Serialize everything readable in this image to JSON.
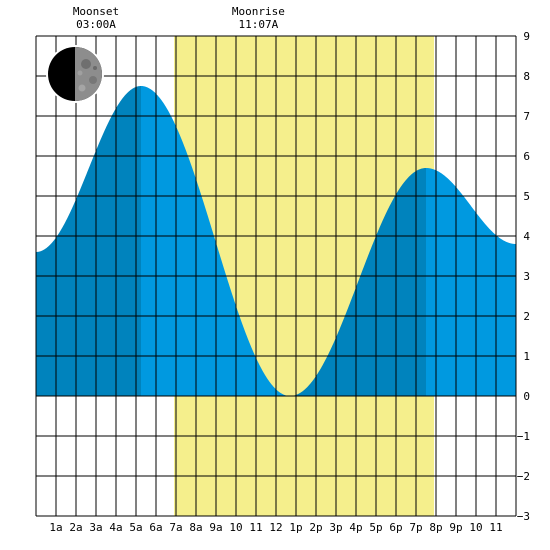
{
  "annotations": [
    {
      "id": "moonset",
      "label": "Moonset",
      "time": "03:00A",
      "hour": 3.0
    },
    {
      "id": "moonrise",
      "label": "Moonrise",
      "time": "11:07A",
      "hour": 11.117
    }
  ],
  "moon_phase": "first-quarter-moon",
  "chart_data": {
    "type": "area",
    "xlim": [
      0,
      24
    ],
    "ylim": [
      -3,
      9
    ],
    "x_ticks": [
      {
        "h": 1,
        "label": "1a"
      },
      {
        "h": 2,
        "label": "2a"
      },
      {
        "h": 3,
        "label": "3a"
      },
      {
        "h": 4,
        "label": "4a"
      },
      {
        "h": 5,
        "label": "5a"
      },
      {
        "h": 6,
        "label": "6a"
      },
      {
        "h": 7,
        "label": "7a"
      },
      {
        "h": 8,
        "label": "8a"
      },
      {
        "h": 9,
        "label": "9a"
      },
      {
        "h": 10,
        "label": "10"
      },
      {
        "h": 11,
        "label": "11"
      },
      {
        "h": 12,
        "label": "12"
      },
      {
        "h": 13,
        "label": "1p"
      },
      {
        "h": 14,
        "label": "2p"
      },
      {
        "h": 15,
        "label": "3p"
      },
      {
        "h": 16,
        "label": "4p"
      },
      {
        "h": 17,
        "label": "5p"
      },
      {
        "h": 18,
        "label": "6p"
      },
      {
        "h": 19,
        "label": "7p"
      },
      {
        "h": 20,
        "label": "8p"
      },
      {
        "h": 21,
        "label": "9p"
      },
      {
        "h": 22,
        "label": "10"
      },
      {
        "h": 23,
        "label": "11"
      }
    ],
    "y_ticks": [
      {
        "v": 9,
        "label": "9"
      },
      {
        "v": 8,
        "label": "8"
      },
      {
        "v": 7,
        "label": "7"
      },
      {
        "v": 6,
        "label": "6"
      },
      {
        "v": 5,
        "label": "5"
      },
      {
        "v": 4,
        "label": "4"
      },
      {
        "v": 3,
        "label": "3"
      },
      {
        "v": 2,
        "label": "2"
      },
      {
        "v": 1,
        "label": "1"
      },
      {
        "v": 0,
        "label": "0"
      },
      {
        "v": -1,
        "label": "−1"
      },
      {
        "v": -2,
        "label": "−2"
      },
      {
        "v": -3,
        "label": "−3"
      }
    ],
    "daylight": {
      "start": 6.9,
      "end": 19.9
    },
    "extremes": [
      {
        "t": 0.0,
        "h": 3.6
      },
      {
        "t": 5.25,
        "h": 7.75
      },
      {
        "t": 12.7,
        "h": 0.0
      },
      {
        "t": 19.5,
        "h": 5.7
      },
      {
        "t": 24.0,
        "h": 3.8
      }
    ],
    "colors": {
      "tide_day": "#0099e0",
      "tide_night": "#0083bd",
      "daylight": "#f5ef8c",
      "grid": "#000000",
      "background": "#ffffff"
    },
    "grid": true
  }
}
